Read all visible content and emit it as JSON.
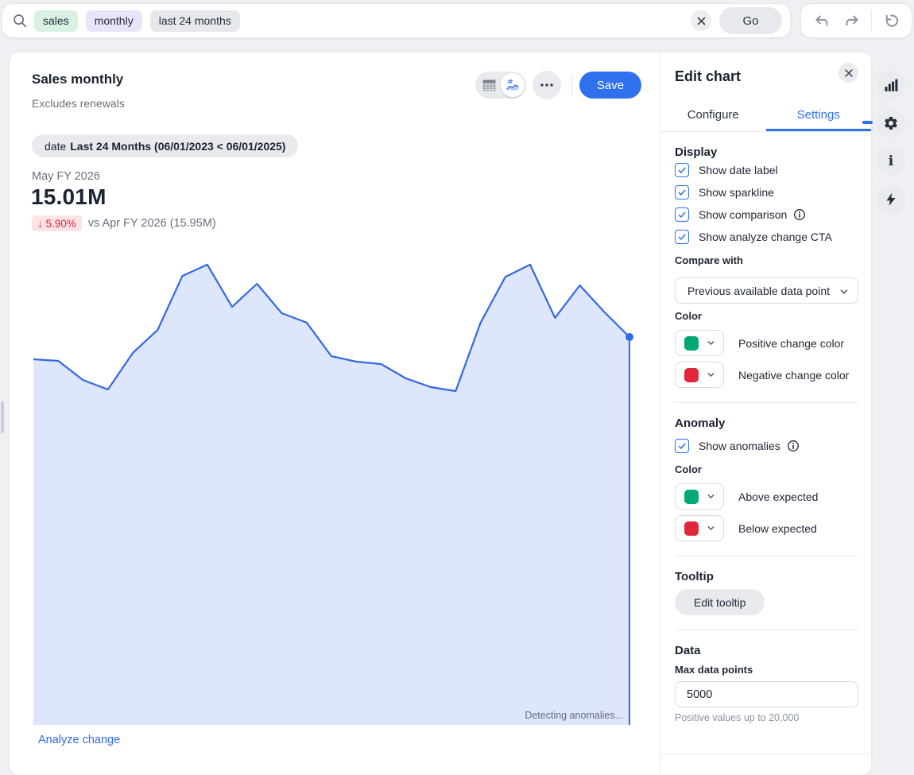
{
  "colors": {
    "accent_blue": "#2F70ED",
    "positive_green": "#00A876",
    "negative_red": "#E1263C",
    "line_blue": "#3368E7"
  },
  "topbar": {
    "search_tags": [
      {
        "label": "sales"
      },
      {
        "label": "monthly"
      },
      {
        "label": "last 24 months"
      }
    ],
    "go_label": "Go"
  },
  "card": {
    "title": "Sales monthly",
    "subtitle": "Excludes renewals",
    "save_label": "Save",
    "filter_chip": {
      "field": "date",
      "value": "Last 24 Months (06/01/2023 < 06/01/2025)"
    },
    "headline": {
      "period": "May FY 2026",
      "value": "15.01M",
      "change_arrow": "↓",
      "change_value": "5.90%",
      "comparison": "vs Apr FY 2026 (15.95M)"
    },
    "status_text": "Detecting anomalies...",
    "analyze_link": "Analyze change"
  },
  "edit_panel": {
    "title": "Edit chart",
    "tabs": [
      {
        "label": "Configure",
        "active": false
      },
      {
        "label": "Settings",
        "active": true
      }
    ],
    "display": {
      "heading": "Display",
      "options": [
        {
          "label": "Show date label",
          "checked": true,
          "info": false
        },
        {
          "label": "Show sparkline",
          "checked": true,
          "info": false
        },
        {
          "label": "Show comparison",
          "checked": true,
          "info": true
        },
        {
          "label": "Show analyze change CTA",
          "checked": true,
          "info": false
        }
      ]
    },
    "compare_with": {
      "label": "Compare with",
      "value": "Previous available data point"
    },
    "comparison_colors": {
      "label": "Color",
      "rows": [
        {
          "swatch": "#00A876",
          "label": "Positive change color"
        },
        {
          "swatch": "#E1263C",
          "label": "Negative change color"
        }
      ]
    },
    "anomaly": {
      "heading": "Anomaly",
      "option": {
        "label": "Show anomalies",
        "checked": true,
        "info": true
      },
      "color_label": "Color",
      "rows": [
        {
          "swatch": "#00A876",
          "label": "Above expected"
        },
        {
          "swatch": "#E1263C",
          "label": "Below expected"
        }
      ]
    },
    "tooltip": {
      "heading": "Tooltip",
      "button_label": "Edit tooltip"
    },
    "data": {
      "heading": "Data",
      "field_label": "Max data points",
      "value": "5000",
      "helper": "Positive values up to 20,000"
    }
  },
  "rail": {
    "icons": [
      "bar-chart",
      "gear",
      "info",
      "lightning"
    ],
    "info_glyph": "i"
  },
  "chart_data": {
    "type": "area",
    "title": "Sales monthly",
    "subtitle": "Excludes renewals",
    "period_start": "06/01/2023",
    "period_end": "06/01/2025",
    "unit": "M",
    "values_m": [
      14.16,
      14.1,
      13.37,
      13.01,
      14.4,
      15.28,
      17.34,
      17.77,
      16.16,
      17.04,
      15.92,
      15.56,
      14.28,
      14.07,
      13.98,
      13.43,
      13.1,
      12.95,
      15.55,
      17.3,
      17.77,
      15.74,
      16.98,
      15.95,
      15.01
    ],
    "current": {
      "period": "May FY 2026",
      "value_m": 15.01
    },
    "previous": {
      "period": "Apr FY 2026",
      "value_m": 15.95
    },
    "change_pct": -5.9,
    "line_color": "#3368E7",
    "fill_opacity": 0.17,
    "axes_visible": false,
    "legend": "none",
    "notes": "values estimated from sparkline pixels; only current and previous values are labeled on screen"
  }
}
